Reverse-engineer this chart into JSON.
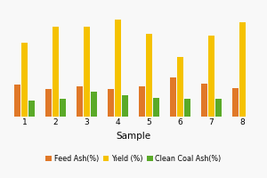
{
  "categories": [
    "1",
    "2",
    "3",
    "4",
    "5",
    "6",
    "7",
    "8"
  ],
  "feed_ash": [
    22,
    19,
    21,
    19,
    21,
    27,
    23,
    20
  ],
  "yield": [
    52,
    63,
    63,
    68,
    58,
    42,
    57,
    66
  ],
  "clean_coal_ash": [
    11,
    12,
    17,
    15,
    13,
    12,
    12,
    0
  ],
  "bar_colors": [
    "#e07828",
    "#f5c200",
    "#5aaa28"
  ],
  "legend_labels": [
    "Feed Ash(%)",
    "Yield (%)",
    "Clean Coal Ash(%)"
  ],
  "xlabel": "Sample",
  "ylim": [
    0,
    80
  ],
  "background_color": "#f8f8f8",
  "grid_color": "#dddddd",
  "bar_width": 0.2,
  "figsize": [
    3.0,
    2.0
  ],
  "dpi": 100
}
